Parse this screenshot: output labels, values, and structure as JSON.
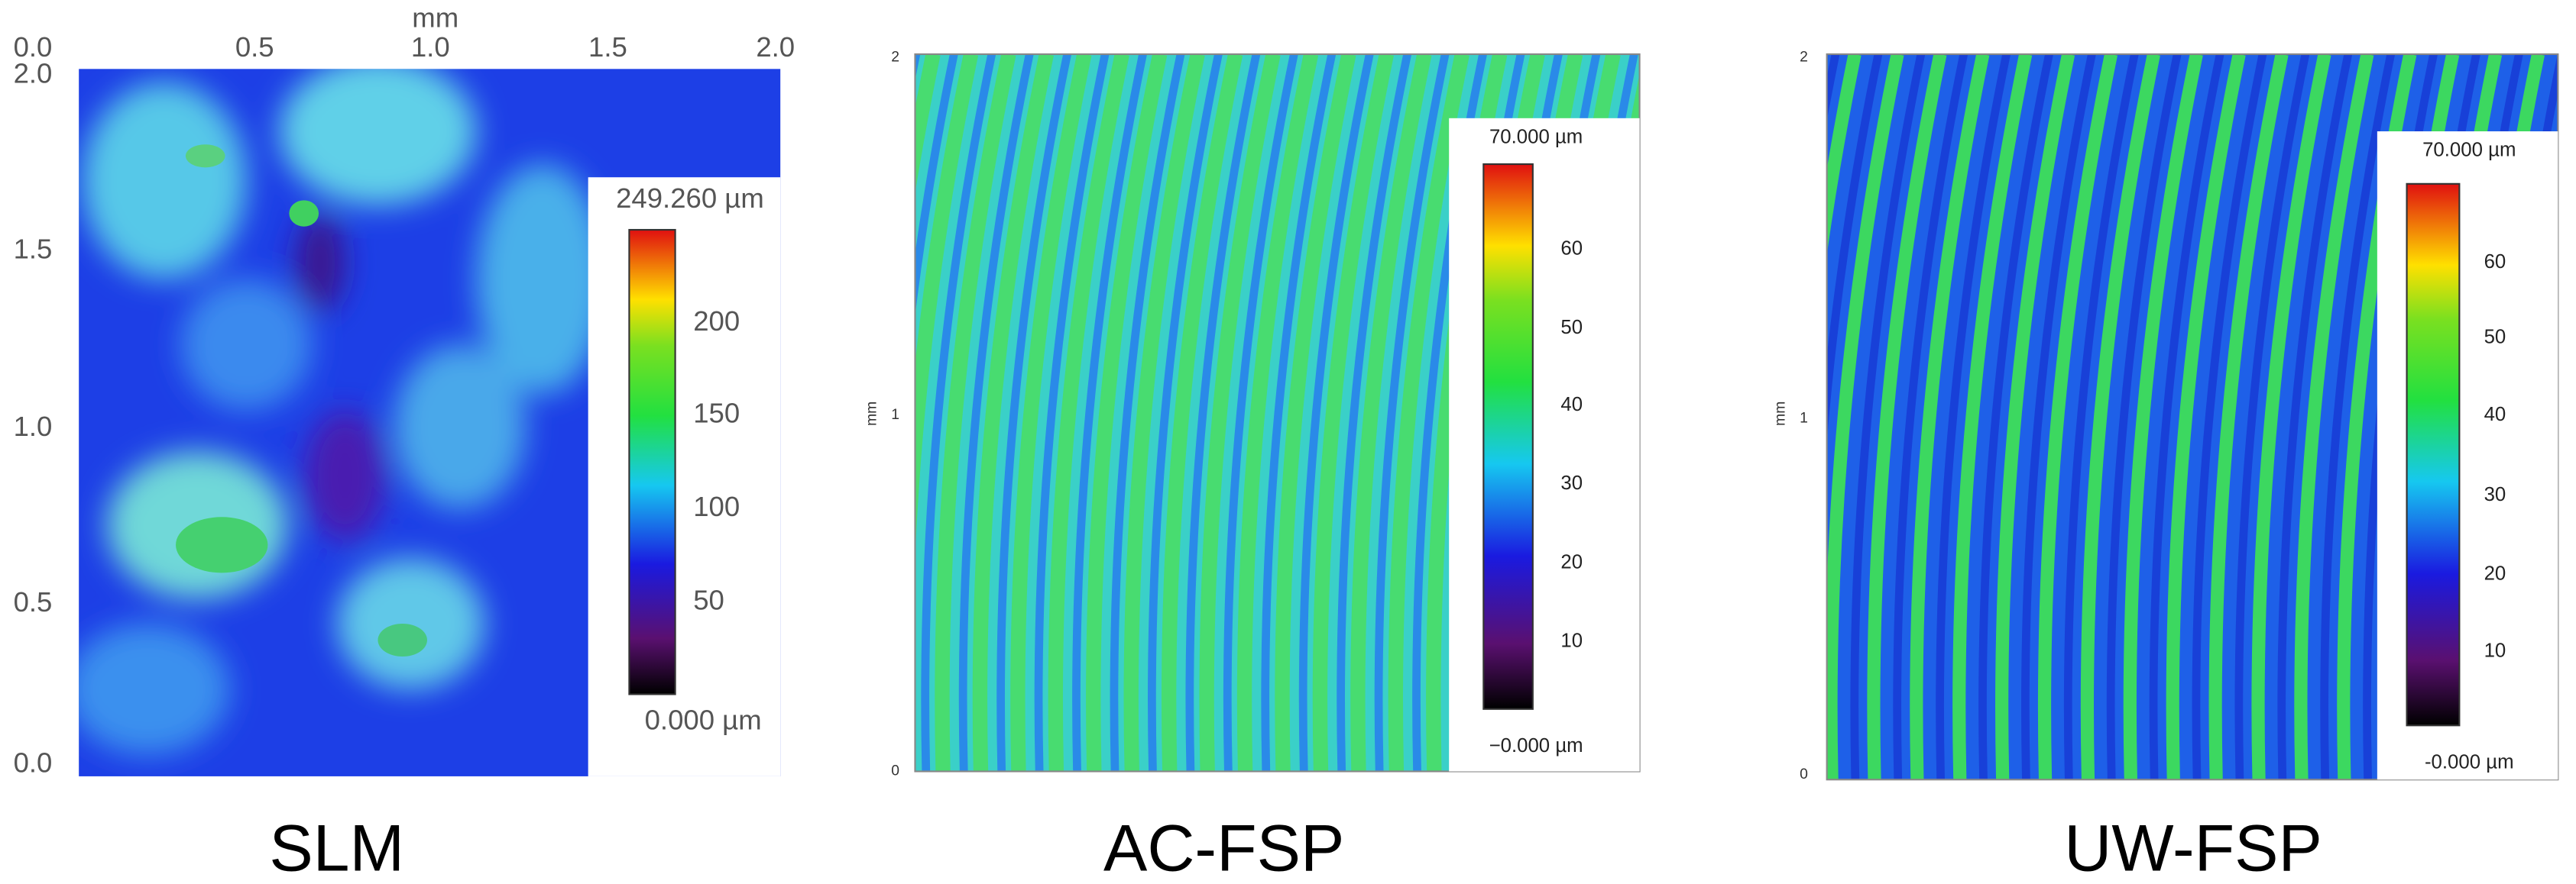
{
  "panels": [
    {
      "caption": "SLM",
      "axis_unit": "mm",
      "x_ticks": [
        "0.0",
        "0.5",
        "1.0",
        "1.5",
        "2.0"
      ],
      "y_ticks": [
        "2.0",
        "1.5",
        "1.0",
        "0.5",
        "0.0"
      ],
      "colorbar": {
        "max_label": "249.260 µm",
        "min_label": "0.000 µm",
        "ticks": [
          "200",
          "150",
          "100",
          "50"
        ]
      }
    },
    {
      "caption": "AC-FSP",
      "axis_unit": "mm",
      "y_ticks": [
        "2",
        "1",
        "0"
      ],
      "colorbar": {
        "max_label": "70.000 µm",
        "min_label": "−0.000 µm",
        "ticks": [
          "60",
          "50",
          "40",
          "30",
          "20",
          "10"
        ]
      }
    },
    {
      "caption": "UW-FSP",
      "axis_unit": "mm",
      "y_ticks": [
        "2",
        "1",
        "0"
      ],
      "colorbar": {
        "max_label": "70.000 µm",
        "min_label": "-0.000 µm",
        "ticks": [
          "60",
          "50",
          "40",
          "30",
          "20",
          "10"
        ]
      }
    }
  ]
}
